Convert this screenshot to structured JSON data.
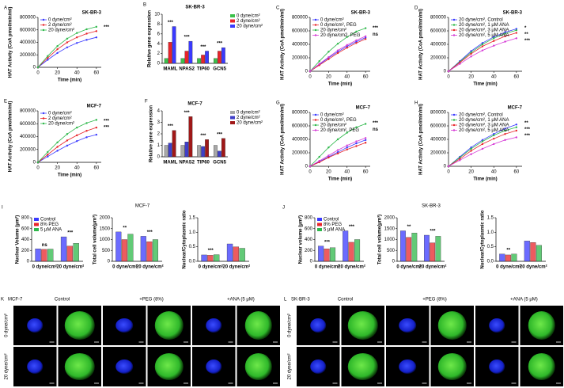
{
  "chart_data": [
    {
      "type": "line",
      "panel": "A",
      "title": "SK-BR-3",
      "xlabel": "Time (min)",
      "ylabel": "HAT Activity (CoA pmol/min/ml)",
      "x": [
        0,
        10,
        20,
        30,
        40,
        50,
        60
      ],
      "xlim": [
        0,
        65
      ],
      "xticks": [
        0,
        20,
        40,
        60
      ],
      "ylim": [
        0,
        800000
      ],
      "yticks": [
        0,
        200000,
        400000,
        600000,
        800000
      ],
      "series": [
        {
          "name": "0 dyne/cm²",
          "color": "#3a3aff",
          "values": [
            0,
            120000,
            230000,
            320000,
            390000,
            440000,
            480000
          ]
        },
        {
          "name": "2 dyne/cm²",
          "color": "#e8242a",
          "values": [
            0,
            150000,
            290000,
            400000,
            480000,
            540000,
            580000
          ]
        },
        {
          "name": "20 dyne/cm²",
          "color": "#2db84a",
          "values": [
            0,
            180000,
            340000,
            460000,
            550000,
            610000,
            650000
          ]
        }
      ],
      "annotations": [
        "***"
      ]
    },
    {
      "type": "bar",
      "panel": "B",
      "title": "SK-BR-3",
      "ylabel": "Relative gene expression",
      "legend_position": "right",
      "categories": [
        "MAML",
        "NPAS2",
        "TIP60",
        "GCN5"
      ],
      "ylim": [
        0,
        10
      ],
      "yticks": [
        0,
        2,
        4,
        6,
        8,
        10
      ],
      "series": [
        {
          "name": "0 dyne/cm²",
          "color": "#3cc04a",
          "values": [
            1,
            1,
            1,
            1
          ]
        },
        {
          "name": "2 dyne/cm²",
          "color": "#e8242a",
          "values": [
            4.3,
            2.5,
            1.7,
            2.5
          ]
        },
        {
          "name": "20 dyne/cm²",
          "color": "#3a3aff",
          "values": [
            7.5,
            4.5,
            2.5,
            3.2
          ]
        }
      ],
      "annotations": [
        "***",
        "***",
        "***",
        "***"
      ]
    },
    {
      "type": "line",
      "panel": "C",
      "title": "SK-BR-3",
      "xlabel": "Time (min)",
      "ylabel": "HAT Activity (CoA pmol/min/ml)",
      "x": [
        0,
        10,
        20,
        30,
        40,
        50,
        60
      ],
      "xlim": [
        0,
        65
      ],
      "xticks": [
        0,
        20,
        40,
        60
      ],
      "ylim": [
        0,
        800000
      ],
      "yticks": [
        0,
        200000,
        400000,
        600000,
        800000
      ],
      "series": [
        {
          "name": "0 dyne/cm²",
          "color": "#3a3aff",
          "values": [
            0,
            100000,
            200000,
            290000,
            370000,
            440000,
            500000
          ]
        },
        {
          "name": "0 dyne/cm², PEG",
          "color": "#e8242a",
          "values": [
            0,
            90000,
            180000,
            270000,
            350000,
            420000,
            480000
          ]
        },
        {
          "name": "20 dyne/cm²",
          "color": "#2db84a",
          "values": [
            0,
            150000,
            290000,
            410000,
            510000,
            590000,
            640000
          ]
        },
        {
          "name": "20 dyne/cm2, PEG",
          "color": "#d63ad6",
          "values": [
            0,
            110000,
            210000,
            310000,
            390000,
            460000,
            520000
          ]
        }
      ],
      "annotations": [
        "***",
        "ns"
      ]
    },
    {
      "type": "line",
      "panel": "D",
      "title": "SK-BR-3",
      "xlabel": "Time (min)",
      "ylabel": "HAT Activity (CoA pmol/min/ml)",
      "x": [
        0,
        10,
        20,
        30,
        40,
        50,
        60
      ],
      "xlim": [
        0,
        65
      ],
      "xticks": [
        0,
        20,
        40,
        60
      ],
      "ylim": [
        0,
        800000
      ],
      "yticks": [
        0,
        200000,
        400000,
        600000,
        800000
      ],
      "series": [
        {
          "name": "20 dyne/cm², Control",
          "color": "#3a3aff",
          "values": [
            0,
            150000,
            300000,
            420000,
            510000,
            580000,
            630000
          ]
        },
        {
          "name": "20 dyne/cm², 1 μM ANA",
          "color": "#2db84a",
          "values": [
            0,
            140000,
            280000,
            400000,
            490000,
            560000,
            610000
          ]
        },
        {
          "name": "20 dyne/cm², 3 μM ANA",
          "color": "#e8242a",
          "values": [
            0,
            130000,
            260000,
            370000,
            450000,
            520000,
            570000
          ]
        },
        {
          "name": "20 dyne/cm², 5 μM ANA",
          "color": "#d63ad6",
          "values": [
            0,
            110000,
            220000,
            310000,
            380000,
            440000,
            490000
          ]
        }
      ],
      "annotations": [
        "*",
        "**",
        "***"
      ]
    },
    {
      "type": "line",
      "panel": "E",
      "title": "MCF-7",
      "xlabel": "Time (min)",
      "ylabel": "HAT Activity (CoA pmol/min/ml)",
      "x": [
        0,
        10,
        20,
        30,
        40,
        50,
        60
      ],
      "xlim": [
        0,
        65
      ],
      "xticks": [
        0,
        20,
        40,
        60
      ],
      "ylim": [
        0,
        800000
      ],
      "yticks": [
        0,
        200000,
        400000,
        600000,
        800000
      ],
      "series": [
        {
          "name": "0 dyne/cm²",
          "color": "#3a3aff",
          "values": [
            0,
            90000,
            180000,
            260000,
            330000,
            390000,
            430000
          ]
        },
        {
          "name": "2 dyne/cm²",
          "color": "#e8242a",
          "values": [
            0,
            120000,
            240000,
            340000,
            420000,
            490000,
            540000
          ]
        },
        {
          "name": "20 dyne/cm²",
          "color": "#2db84a",
          "values": [
            0,
            160000,
            310000,
            440000,
            540000,
            610000,
            660000
          ]
        }
      ],
      "annotations": [
        "***",
        "***"
      ]
    },
    {
      "type": "bar",
      "panel": "F",
      "title": "MCF-7",
      "ylabel": "Relative gene expression",
      "legend_position": "right",
      "categories": [
        "MAML",
        "NPAS2",
        "TIP60",
        "GCN5"
      ],
      "ylim": [
        0,
        4
      ],
      "yticks": [
        0,
        1,
        2,
        3,
        4
      ],
      "series": [
        {
          "name": "0 dyne/cm²",
          "color": "#a8a8a8",
          "values": [
            1,
            1,
            1,
            1
          ]
        },
        {
          "name": "2 dyne/cm²",
          "color": "#3f3fc8",
          "values": [
            1.2,
            1.3,
            0.9,
            0.5
          ]
        },
        {
          "name": "20 dyne/cm²",
          "color": "#a01818",
          "values": [
            2.3,
            3.5,
            1.5,
            1.6
          ]
        }
      ],
      "annotations": [
        "***",
        "***",
        "***",
        "***"
      ]
    },
    {
      "type": "line",
      "panel": "G",
      "title": "MCF-7",
      "xlabel": "Time (min)",
      "ylabel": "HAT Activity (CoA pmol/min/ml)",
      "x": [
        0,
        10,
        20,
        30,
        40,
        50,
        60
      ],
      "xlim": [
        0,
        65
      ],
      "xticks": [
        0,
        20,
        40,
        60
      ],
      "ylim": [
        0,
        800000
      ],
      "yticks": [
        0,
        200000,
        400000,
        600000,
        800000
      ],
      "series": [
        {
          "name": "0 dyne/cm²",
          "color": "#3a3aff",
          "values": [
            0,
            70000,
            140000,
            210000,
            280000,
            340000,
            390000
          ]
        },
        {
          "name": "0 dyne/cm², PEG",
          "color": "#e8242a",
          "values": [
            0,
            60000,
            130000,
            190000,
            250000,
            300000,
            350000
          ]
        },
        {
          "name": "20 dyne/cm²",
          "color": "#2db84a",
          "values": [
            0,
            140000,
            280000,
            400000,
            500000,
            580000,
            630000
          ]
        },
        {
          "name": "20 dyne/cm², PEG",
          "color": "#d63ad6",
          "values": [
            0,
            80000,
            160000,
            240000,
            310000,
            370000,
            420000
          ]
        }
      ],
      "annotations": [
        "***",
        "ns"
      ]
    },
    {
      "type": "line",
      "panel": "H",
      "title": "MCF-7",
      "xlabel": "Time (min)",
      "ylabel": "HAT Activity (CoA pmol/min/ml)",
      "x": [
        0,
        10,
        20,
        30,
        40,
        50,
        60
      ],
      "xlim": [
        0,
        65
      ],
      "xticks": [
        0,
        20,
        40,
        60
      ],
      "ylim": [
        0,
        800000
      ],
      "yticks": [
        0,
        200000,
        400000,
        600000,
        800000
      ],
      "series": [
        {
          "name": "20 dyne/cm², Control",
          "color": "#3a3aff",
          "values": [
            0,
            140000,
            280000,
            390000,
            480000,
            560000,
            620000
          ]
        },
        {
          "name": "20 dyne/cm², 1 μM ANA",
          "color": "#2db84a",
          "values": [
            0,
            130000,
            260000,
            370000,
            460000,
            530000,
            580000
          ]
        },
        {
          "name": "20 dyne/cm², 3 μM ANA",
          "color": "#e8242a",
          "values": [
            0,
            110000,
            230000,
            330000,
            410000,
            480000,
            530000
          ]
        },
        {
          "name": "20 dyne/cm², 5 μM ANA",
          "color": "#d63ad6",
          "values": [
            0,
            90000,
            180000,
            260000,
            330000,
            390000,
            430000
          ]
        }
      ],
      "annotations": [
        "**",
        "***",
        "***"
      ]
    },
    {
      "type": "bar",
      "ylabel": "Nuclear Volume (μm³)",
      "legend_position": "upper left",
      "categories": [
        "0 dyne/cm²",
        "20 dyne/cm²"
      ],
      "ylim": [
        0,
        800
      ],
      "yticks": [
        0,
        200,
        400,
        600,
        800
      ],
      "series": [
        {
          "name": "Control",
          "color": "#3a3aff",
          "values": [
            230,
            450
          ]
        },
        {
          "name": "8% PEG",
          "color": "#e8242a",
          "values": [
            220,
            280
          ]
        },
        {
          "name": "5 μM ANA",
          "color": "#2db84a",
          "values": [
            225,
            330
          ]
        }
      ],
      "annotations": [
        "ns",
        "***"
      ]
    },
    {
      "type": "bar",
      "ylabel": "Total cell volume(μm³)",
      "categories": [
        "0 dyne/cm²",
        "20 dyne/cm²"
      ],
      "ylim": [
        0,
        2000
      ],
      "yticks": [
        0,
        500,
        1000,
        1500,
        2000
      ],
      "series": [
        {
          "name": "Control",
          "color": "#3a3aff",
          "values": [
            1350,
            1150
          ]
        },
        {
          "name": "8% PEG",
          "color": "#e8242a",
          "values": [
            1000,
            900
          ]
        },
        {
          "name": "5 μM ANA",
          "color": "#2db84a",
          "values": [
            1250,
            1000
          ]
        }
      ],
      "annotations": [
        "**",
        "***"
      ]
    },
    {
      "type": "bar",
      "ylabel": "Nuclear/Cytoplasmic ratio",
      "categories": [
        "0 dyne/cm²",
        "20 dyne/cm²"
      ],
      "ylim": [
        0,
        1.5
      ],
      "yticks": [
        {
          "value": 0,
          "label": "0.0"
        },
        0.5,
        {
          "value": 1,
          "label": "1.0"
        },
        1.5
      ],
      "series": [
        {
          "name": "Control",
          "color": "#3a3aff",
          "values": [
            0.22,
            0.6
          ]
        },
        {
          "name": "8% PEG",
          "color": "#e8242a",
          "values": [
            0.21,
            0.5
          ]
        },
        {
          "name": "5 μM ANA",
          "color": "#2db84a",
          "values": [
            0.23,
            0.45
          ]
        }
      ],
      "annotations": [
        "***"
      ]
    },
    {
      "type": "bar",
      "ylabel": "Nuclear volume (μm³)",
      "legend_position": "upper left",
      "categories": [
        "0 dyne/cm²",
        "20 dyne/cm²"
      ],
      "ylim": [
        0,
        800
      ],
      "yticks": [
        0,
        200,
        400,
        600,
        800
      ],
      "series": [
        {
          "name": "Control",
          "color": "#3a3aff",
          "values": [
            280,
            560
          ]
        },
        {
          "name": "8% PEG",
          "color": "#e8242a",
          "values": [
            230,
            350
          ]
        },
        {
          "name": "5 μM ANA",
          "color": "#2db84a",
          "values": [
            250,
            400
          ]
        }
      ],
      "annotations": [
        "***",
        "***"
      ]
    },
    {
      "type": "bar",
      "ylabel": "Total cell volume(μm³)",
      "categories": [
        "0 dyne/cm²",
        "20 dyne/cm²"
      ],
      "ylim": [
        0,
        2000
      ],
      "yticks": [
        0,
        500,
        1000,
        1500,
        2000
      ],
      "series": [
        {
          "name": "Control",
          "color": "#3a3aff",
          "values": [
            1400,
            1200
          ]
        },
        {
          "name": "8% PEG",
          "color": "#e8242a",
          "values": [
            1100,
            850
          ]
        },
        {
          "name": "5 μM ANA",
          "color": "#2db84a",
          "values": [
            1300,
            1150
          ]
        }
      ],
      "annotations": [
        "**",
        "***"
      ]
    },
    {
      "type": "bar",
      "ylabel": "Nuclear/Cytoplasmic ratio",
      "categories": [
        "0 dyne/cm²",
        "20 dyne/cm²"
      ],
      "ylim": [
        0,
        1.5
      ],
      "yticks": [
        {
          "value": 0,
          "label": "0.0"
        },
        0.5,
        {
          "value": 1,
          "label": "1.0"
        },
        1.5
      ],
      "series": [
        {
          "name": "Control",
          "color": "#3a3aff",
          "values": [
            0.25,
            0.7
          ]
        },
        {
          "name": "8% PEG",
          "color": "#e8242a",
          "values": [
            0.22,
            0.65
          ]
        },
        {
          "name": "5 μM ANA",
          "color": "#2db84a",
          "values": [
            0.25,
            0.55
          ]
        }
      ],
      "annotations": [
        "**"
      ]
    }
  ],
  "panel_groups": [
    {
      "panel": "I",
      "title": "MCF-7"
    },
    {
      "panel": "J",
      "title": "SK-BR-3"
    }
  ],
  "image_panels": [
    {
      "panel": "K",
      "title": "MCF-7",
      "columns": [
        "Control",
        "+PEG (8%)",
        "+ANA (5 μM)"
      ],
      "rows": [
        "0 dyne/cm²",
        "20 dyne/cm²"
      ]
    },
    {
      "panel": "L",
      "title": "SK-BR-3",
      "columns": [
        "Control",
        "+PEG (8%)",
        "+ANA (5 μM)"
      ],
      "rows": [
        "0 dyne/cm²",
        "20 dyne/cm²"
      ]
    }
  ]
}
